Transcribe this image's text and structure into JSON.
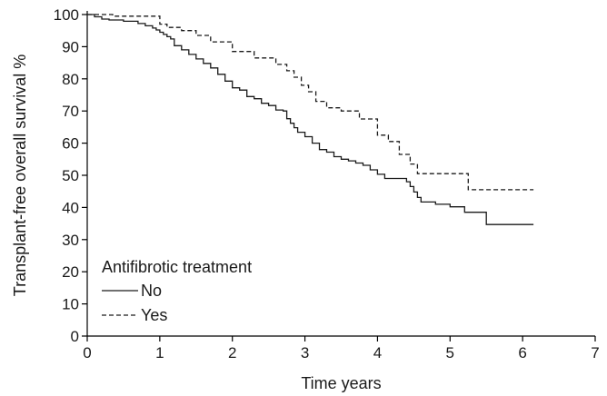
{
  "chart_data": {
    "type": "line",
    "title": "",
    "xlabel": "Time years",
    "ylabel": "Transplant-free overall survival %",
    "xlim": [
      0,
      7
    ],
    "ylim": [
      0,
      100
    ],
    "x_ticks": [
      0,
      1,
      2,
      3,
      4,
      5,
      6,
      7
    ],
    "y_ticks": [
      0,
      10,
      20,
      30,
      40,
      50,
      60,
      70,
      80,
      90,
      100
    ],
    "grid": false,
    "step": true,
    "legend": {
      "title": "Antifibrotic treatment",
      "placement": "lower-left",
      "entries": [
        "No",
        "Yes"
      ]
    },
    "series": [
      {
        "name": "No",
        "line_style": "solid",
        "x": [
          0,
          0.1,
          0.2,
          0.3,
          0.5,
          0.7,
          0.8,
          0.9,
          0.95,
          1.0,
          1.05,
          1.1,
          1.15,
          1.2,
          1.3,
          1.4,
          1.5,
          1.6,
          1.7,
          1.8,
          1.9,
          2.0,
          2.1,
          2.2,
          2.3,
          2.4,
          2.5,
          2.6,
          2.7,
          2.75,
          2.8,
          2.85,
          2.9,
          3.0,
          3.1,
          3.2,
          3.3,
          3.4,
          3.5,
          3.6,
          3.7,
          3.8,
          3.9,
          4.0,
          4.1,
          4.2,
          4.3,
          4.4,
          4.45,
          4.5,
          4.55,
          4.6,
          4.8,
          5.0,
          5.2,
          5.5,
          6.15
        ],
        "y": [
          100,
          99.3,
          98.6,
          98.3,
          97.9,
          97.2,
          96.5,
          95.8,
          95.2,
          94.5,
          93.8,
          93.1,
          92.4,
          90.3,
          89.0,
          87.6,
          86.2,
          84.8,
          83.4,
          81.4,
          79.3,
          77.2,
          76.5,
          74.5,
          73.8,
          72.4,
          71.7,
          70.3,
          70.0,
          67.6,
          66.2,
          64.8,
          63.4,
          62.0,
          60.0,
          58.0,
          57.2,
          55.8,
          55.0,
          54.5,
          53.8,
          53.1,
          51.7,
          50.3,
          49.0,
          49.0,
          49.0,
          48.0,
          46.5,
          44.8,
          43.1,
          41.7,
          41.0,
          40.2,
          38.5,
          34.7,
          34.7
        ]
      },
      {
        "name": "Yes",
        "line_style": "dashed",
        "x": [
          0,
          0.35,
          1.0,
          1.1,
          1.3,
          1.5,
          1.7,
          2.0,
          2.3,
          2.6,
          2.75,
          2.85,
          2.95,
          3.05,
          3.15,
          3.3,
          3.5,
          3.75,
          4.0,
          4.15,
          4.3,
          4.45,
          4.55,
          4.65,
          5.25,
          6.15
        ],
        "y": [
          100,
          99.5,
          97.0,
          96.0,
          95.0,
          93.5,
          91.5,
          88.5,
          86.5,
          84.5,
          82.5,
          80.5,
          78.0,
          76.0,
          73.0,
          71.0,
          70.0,
          67.5,
          62.5,
          60.5,
          56.5,
          53.5,
          50.5,
          50.5,
          45.5,
          45.5
        ]
      }
    ]
  }
}
